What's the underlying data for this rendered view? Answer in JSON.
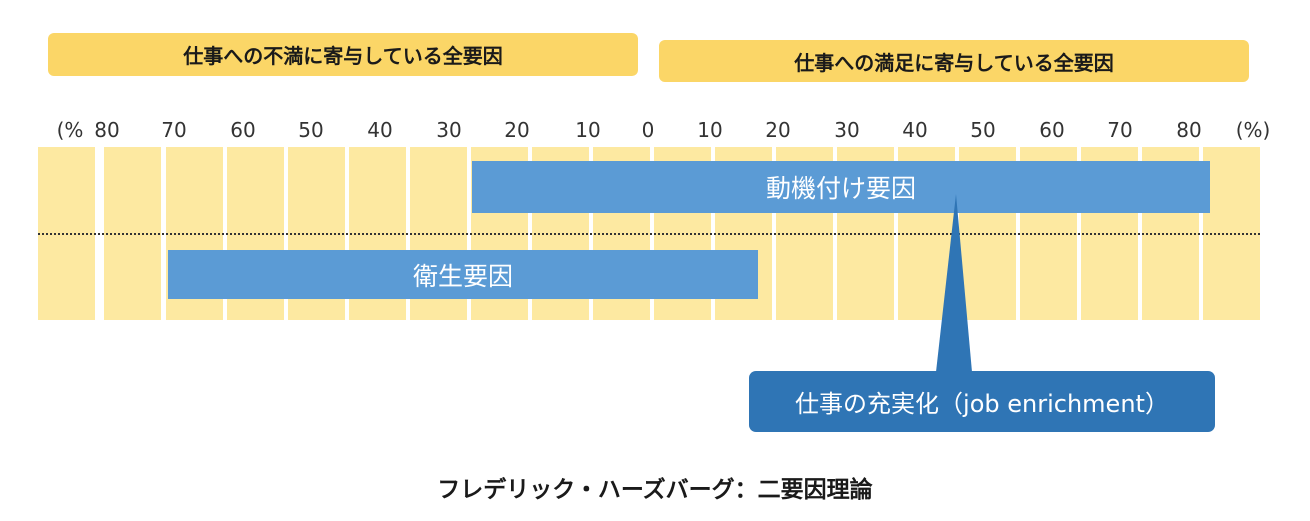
{
  "header": {
    "dissatisfaction_label": "仕事への不満に寄与している全要因",
    "satisfaction_label": "仕事への満足に寄与している全要因"
  },
  "scale": {
    "ticks": [
      "(%",
      "80",
      "70",
      "60",
      "50",
      "40",
      "30",
      "20",
      "10",
      "0",
      "10",
      "20",
      "30",
      "40",
      "50",
      "60",
      "70",
      "80",
      "(%)"
    ]
  },
  "factors": {
    "motivation": {
      "label": "動機付け要因",
      "range_percent": [
        -25,
        83
      ]
    },
    "hygiene": {
      "label": "衛生要因",
      "range_percent": [
        -70,
        17
      ]
    }
  },
  "callout": {
    "label": "仕事の充実化（job enrichment）"
  },
  "caption": "フレデリック・ハーズバーグ：二要因理論",
  "colors": {
    "header_bg": "#fbd667",
    "column_bg": "#fde9a1",
    "factor_bar": "#5b9bd5",
    "callout_bg": "#2f75b5"
  }
}
